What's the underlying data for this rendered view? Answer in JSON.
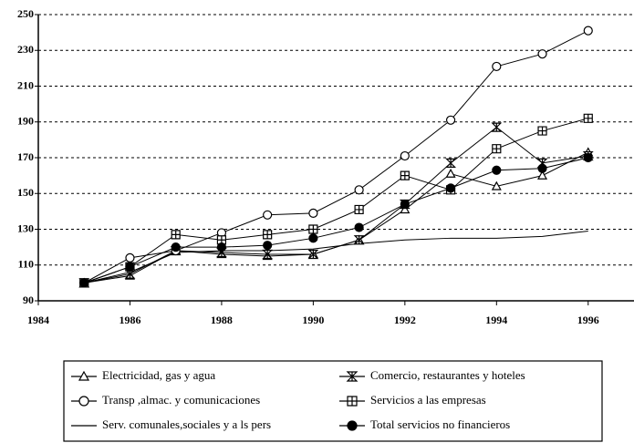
{
  "chart_data": {
    "type": "line",
    "x": [
      1985,
      1986,
      1987,
      1988,
      1989,
      1990,
      1991,
      1992,
      1993,
      1994,
      1995,
      1996
    ],
    "xlim": [
      1984,
      1997
    ],
    "xticks": [
      1984,
      1986,
      1988,
      1990,
      1992,
      1994,
      1996
    ],
    "ylim": [
      90,
      250
    ],
    "yticks": [
      90,
      110,
      130,
      150,
      170,
      190,
      210,
      230,
      250
    ],
    "grid": true,
    "legend": "bottom",
    "series": [
      {
        "name": "Electricidad, gas y agua",
        "color": "#000000",
        "marker": "triangle",
        "values": [
          100,
          104,
          118,
          116,
          115,
          116,
          124,
          141,
          161,
          154,
          160,
          173
        ]
      },
      {
        "name": "Comercio, restaurantes y hoteles",
        "color": "#000000",
        "marker": "hourglass",
        "values": [
          100,
          105,
          118,
          117,
          116,
          116,
          124,
          144,
          167,
          187,
          167,
          171
        ]
      },
      {
        "name": "Transp ,almac. y comunicaciones",
        "color": "#000000",
        "marker": "circle-open",
        "values": [
          100,
          114,
          118,
          128,
          138,
          139,
          152,
          171,
          191,
          221,
          228,
          241
        ]
      },
      {
        "name": "Servicios a las empresas",
        "color": "#000000",
        "marker": "square-cross",
        "values": [
          100,
          109,
          127,
          124,
          127,
          130,
          141,
          160,
          152,
          175,
          185,
          192
        ]
      },
      {
        "name": "Serv. comunales,sociales y a ls pers",
        "color": "#000000",
        "marker": "none",
        "values": [
          100,
          106,
          117,
          118,
          118,
          119,
          122,
          124,
          125,
          125,
          126,
          129
        ]
      },
      {
        "name": "Total servicios no financieros",
        "color": "#000000",
        "marker": "circle-filled",
        "values": [
          100,
          109,
          120,
          120,
          121,
          125,
          131,
          144,
          153,
          163,
          164,
          170
        ]
      }
    ]
  }
}
